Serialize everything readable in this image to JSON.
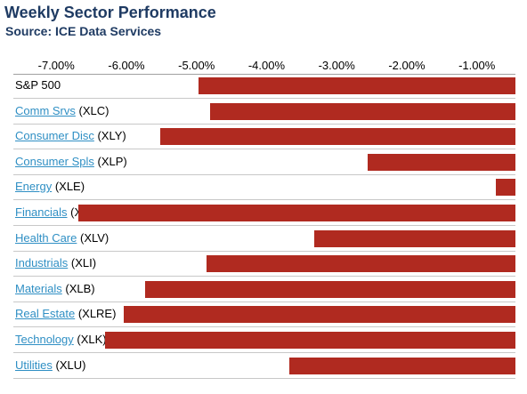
{
  "chart_data": {
    "type": "bar",
    "orientation": "horizontal",
    "title": "Weekly Sector Performance",
    "subtitle": "Source: ICE Data Services",
    "x_ticks": [
      "-7.00%",
      "-6.00%",
      "-5.00%",
      "-4.00%",
      "-3.00%",
      "-2.00%",
      "-1.00%"
    ],
    "x_tick_values": [
      -7,
      -6,
      -5,
      -4,
      -3,
      -2,
      -1
    ],
    "xlim": [
      -7.6,
      -0.45
    ],
    "axis_position": "top",
    "colors": {
      "bar": "#b02a20",
      "link": "#2f8fc4",
      "title": "#1f3b63"
    },
    "categories": [
      {
        "name": "S&P 500",
        "ticker": "",
        "link": false,
        "value": -4.97
      },
      {
        "name": "Comm Srvs",
        "ticker": "(XLC)",
        "link": true,
        "value": -4.8
      },
      {
        "name": "Consumer Disc",
        "ticker": "(XLY)",
        "link": true,
        "value": -5.52
      },
      {
        "name": "Consumer Spls",
        "ticker": "(XLP)",
        "link": true,
        "value": -2.56
      },
      {
        "name": "Energy",
        "ticker": "(XLE)",
        "link": true,
        "value": -0.73
      },
      {
        "name": "Financials",
        "ticker": "(XLF)",
        "link": true,
        "value": -6.69
      },
      {
        "name": "Health Care",
        "ticker": "(XLV)",
        "link": true,
        "value": -3.32
      },
      {
        "name": "Industrials",
        "ticker": "(XLI)",
        "link": true,
        "value": -4.86
      },
      {
        "name": "Materials",
        "ticker": "(XLB)",
        "link": true,
        "value": -5.73
      },
      {
        "name": "Real Estate",
        "ticker": "(XLRE)",
        "link": true,
        "value": -6.04
      },
      {
        "name": "Technology",
        "ticker": "(XLK)",
        "link": true,
        "value": -6.3
      },
      {
        "name": "Utilities",
        "ticker": "(XLU)",
        "link": true,
        "value": -3.68
      }
    ]
  }
}
